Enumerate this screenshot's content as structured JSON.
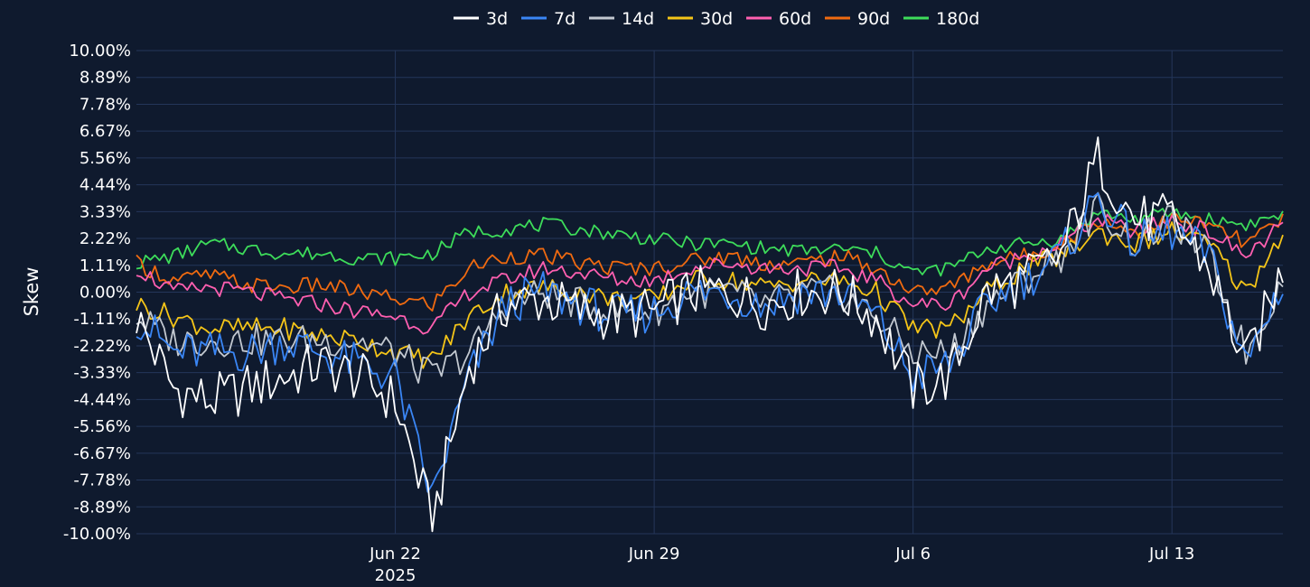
{
  "chart_data": {
    "type": "line",
    "title": "",
    "xlabel": "",
    "ylabel": "Skew",
    "ylim": [
      -10.0,
      10.0
    ],
    "y_ticks": [
      "10.00%",
      "8.89%",
      "7.78%",
      "6.67%",
      "5.56%",
      "4.44%",
      "3.33%",
      "2.22%",
      "1.11%",
      "0.00%",
      "-1.11%",
      "-2.22%",
      "-3.33%",
      "-4.44%",
      "-5.56%",
      "-6.67%",
      "-7.78%",
      "-8.89%",
      "-10.00%"
    ],
    "x_ticks": [
      {
        "date": "2025-06-22",
        "label": "Jun 22",
        "sublabel": "2025"
      },
      {
        "date": "2025-06-29",
        "label": "Jun 29",
        "sublabel": ""
      },
      {
        "date": "2025-07-06",
        "label": "Jul 6",
        "sublabel": ""
      },
      {
        "date": "2025-07-13",
        "label": "Jul 13",
        "sublabel": ""
      }
    ],
    "xlim": [
      "2025-06-15",
      "2025-07-16"
    ],
    "grid": true,
    "legend": "top-center",
    "x": [
      "2025-06-15",
      "2025-06-16",
      "2025-06-17",
      "2025-06-18",
      "2025-06-19",
      "2025-06-20",
      "2025-06-21",
      "2025-06-22",
      "2025-06-23",
      "2025-06-24",
      "2025-06-25",
      "2025-06-26",
      "2025-06-27",
      "2025-06-28",
      "2025-06-29",
      "2025-06-30",
      "2025-07-01",
      "2025-07-02",
      "2025-07-03",
      "2025-07-04",
      "2025-07-05",
      "2025-07-06",
      "2025-07-07",
      "2025-07-08",
      "2025-07-09",
      "2025-07-10",
      "2025-07-11",
      "2025-07-12",
      "2025-07-13",
      "2025-07-14",
      "2025-07-15",
      "2025-07-16"
    ],
    "series": [
      {
        "name": "3d",
        "color": "#ffffff",
        "values": [
          -1.0,
          -4.0,
          -4.5,
          -4.0,
          -3.5,
          -3.0,
          -3.5,
          -4.5,
          -9.5,
          -3.0,
          -0.5,
          -0.3,
          -0.8,
          -1.0,
          -0.8,
          0.0,
          0.0,
          -0.5,
          0.0,
          0.0,
          -1.0,
          -4.0,
          -3.5,
          0.0,
          0.5,
          1.5,
          5.5,
          3.0,
          3.0,
          1.0,
          -3.0,
          1.0
        ]
      },
      {
        "name": "7d",
        "color": "#3a86f5",
        "values": [
          -1.0,
          -2.5,
          -2.5,
          -2.5,
          -2.0,
          -2.5,
          -3.0,
          -3.5,
          -8.5,
          -3.5,
          -0.5,
          0.0,
          -0.5,
          -1.0,
          -0.8,
          0.0,
          0.0,
          -0.5,
          0.0,
          0.0,
          -1.0,
          -3.5,
          -3.0,
          -0.5,
          0.5,
          1.5,
          4.0,
          2.0,
          2.5,
          1.5,
          -3.0,
          0.5
        ]
      },
      {
        "name": "14d",
        "color": "#c2c8d0",
        "values": [
          -1.0,
          -2.0,
          -2.0,
          -2.0,
          -2.0,
          -2.0,
          -2.0,
          -2.5,
          -3.5,
          -2.5,
          -0.5,
          0.0,
          -0.5,
          -0.8,
          -0.8,
          0.0,
          0.0,
          -0.5,
          0.0,
          0.0,
          -1.0,
          -2.5,
          -2.5,
          -0.5,
          0.5,
          1.5,
          3.5,
          2.0,
          3.0,
          1.5,
          -2.5,
          0.5
        ]
      },
      {
        "name": "30d",
        "color": "#f5c518",
        "values": [
          -0.5,
          -1.0,
          -1.5,
          -1.5,
          -1.5,
          -1.8,
          -2.0,
          -2.5,
          -2.8,
          -1.0,
          0.0,
          0.2,
          0.0,
          -0.3,
          -0.3,
          0.5,
          0.5,
          0.2,
          0.5,
          0.5,
          0.0,
          -1.5,
          -1.5,
          0.0,
          1.0,
          1.5,
          2.5,
          2.0,
          2.5,
          2.0,
          0.0,
          2.5
        ]
      },
      {
        "name": "60d",
        "color": "#ff5fb0",
        "values": [
          1.0,
          0.0,
          0.2,
          0.0,
          -0.3,
          -0.5,
          -0.8,
          -1.0,
          -1.5,
          0.0,
          0.5,
          1.0,
          0.8,
          0.5,
          0.5,
          1.0,
          1.2,
          1.0,
          1.0,
          1.0,
          0.5,
          -0.5,
          -0.5,
          1.0,
          1.5,
          2.0,
          3.0,
          2.5,
          3.0,
          2.5,
          1.5,
          2.8
        ]
      },
      {
        "name": "90d",
        "color": "#f06a10",
        "values": [
          1.2,
          0.5,
          0.7,
          0.3,
          0.2,
          0.3,
          0.0,
          -0.3,
          -0.5,
          1.0,
          1.5,
          1.5,
          1.2,
          1.0,
          1.0,
          1.3,
          1.5,
          1.2,
          1.2,
          1.5,
          1.0,
          0.0,
          0.2,
          1.2,
          1.5,
          2.0,
          3.0,
          2.5,
          3.0,
          2.8,
          2.0,
          3.0
        ]
      },
      {
        "name": "180d",
        "color": "#3ddc5a",
        "values": [
          1.2,
          1.5,
          2.0,
          1.8,
          1.6,
          1.6,
          1.4,
          1.4,
          1.6,
          2.5,
          2.6,
          2.8,
          2.6,
          2.4,
          2.2,
          2.0,
          2.0,
          1.8,
          1.7,
          1.8,
          1.6,
          0.8,
          1.0,
          1.8,
          2.0,
          2.2,
          3.3,
          3.0,
          3.3,
          3.0,
          2.8,
          3.2
        ]
      }
    ]
  }
}
